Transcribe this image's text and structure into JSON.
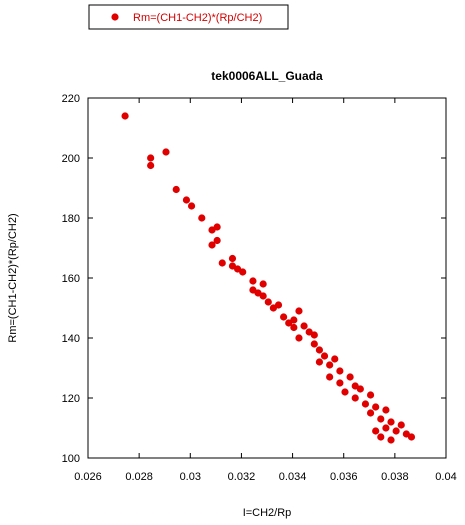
{
  "chart_data": {
    "type": "scatter",
    "title": "tek0006ALL_Guada",
    "xlabel": "I=CH2/Rp",
    "ylabel": "Rm=(CH1-CH2)*(Rp/CH2)",
    "xlim": [
      0.026,
      0.04
    ],
    "ylim": [
      100,
      220
    ],
    "xticks": [
      "0.026",
      "0.028",
      "0.03",
      "0.032",
      "0.034",
      "0.036",
      "0.038",
      "0.04"
    ],
    "yticks": [
      "100",
      "120",
      "140",
      "160",
      "180",
      "200",
      "220"
    ],
    "grid": false,
    "legend_position": "top-left",
    "series": [
      {
        "name": "Rm=(CH1-CH2)*(Rp/CH2)",
        "color": "#e00000",
        "points": [
          [
            0.02745,
            214
          ],
          [
            0.02845,
            200
          ],
          [
            0.02845,
            197.5
          ],
          [
            0.02905,
            202
          ],
          [
            0.02945,
            189.5
          ],
          [
            0.02985,
            186
          ],
          [
            0.03005,
            184
          ],
          [
            0.03045,
            180
          ],
          [
            0.03085,
            176
          ],
          [
            0.03105,
            177
          ],
          [
            0.03085,
            171
          ],
          [
            0.03105,
            172.5
          ],
          [
            0.03125,
            165
          ],
          [
            0.03165,
            166.5
          ],
          [
            0.03165,
            164
          ],
          [
            0.03185,
            163
          ],
          [
            0.03205,
            162
          ],
          [
            0.03245,
            159
          ],
          [
            0.03265,
            155
          ],
          [
            0.03245,
            156
          ],
          [
            0.03285,
            154
          ],
          [
            0.03285,
            158
          ],
          [
            0.03305,
            152
          ],
          [
            0.03325,
            150
          ],
          [
            0.03345,
            151
          ],
          [
            0.03365,
            147
          ],
          [
            0.03385,
            145
          ],
          [
            0.03405,
            146
          ],
          [
            0.03425,
            149
          ],
          [
            0.03405,
            143.5
          ],
          [
            0.03445,
            144
          ],
          [
            0.03425,
            140
          ],
          [
            0.03465,
            142
          ],
          [
            0.03485,
            138
          ],
          [
            0.03505,
            136
          ],
          [
            0.03485,
            141
          ],
          [
            0.03505,
            132
          ],
          [
            0.03525,
            134
          ],
          [
            0.03545,
            131
          ],
          [
            0.03565,
            133
          ],
          [
            0.03545,
            127
          ],
          [
            0.03585,
            129
          ],
          [
            0.03585,
            125
          ],
          [
            0.03605,
            122
          ],
          [
            0.03625,
            127
          ],
          [
            0.03645,
            124
          ],
          [
            0.03645,
            120
          ],
          [
            0.03665,
            123
          ],
          [
            0.03685,
            118
          ],
          [
            0.03705,
            121
          ],
          [
            0.03705,
            115
          ],
          [
            0.03725,
            117
          ],
          [
            0.03745,
            113
          ],
          [
            0.03765,
            116
          ],
          [
            0.03765,
            110
          ],
          [
            0.03785,
            112
          ],
          [
            0.03805,
            109
          ],
          [
            0.03825,
            111
          ],
          [
            0.03845,
            108
          ],
          [
            0.03865,
            107
          ],
          [
            0.03785,
            106
          ],
          [
            0.03745,
            107
          ],
          [
            0.03725,
            109
          ]
        ]
      }
    ]
  }
}
